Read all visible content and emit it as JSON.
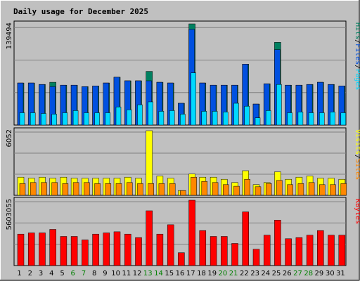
{
  "chart_data": {
    "type": "bar",
    "title": "Daily usage for December 2025",
    "days": [
      "1",
      "2",
      "3",
      "4",
      "5",
      "6",
      "7",
      "8",
      "9",
      "10",
      "11",
      "12",
      "13",
      "14",
      "15",
      "16",
      "17",
      "18",
      "19",
      "20",
      "21",
      "22",
      "23",
      "24",
      "25",
      "26",
      "27",
      "28",
      "29",
      "30",
      "31"
    ],
    "weekend_days": [
      "6",
      "7",
      "13",
      "14",
      "20",
      "21",
      "27",
      "28"
    ],
    "colors": {
      "background": "#c0c0c0",
      "title": "#0000aa",
      "pages": "#00d8ff",
      "files": "#0050e0",
      "hits": "#008060",
      "visits": "#ffff00",
      "sites": "#ff8800",
      "kbytes": "#ff0000",
      "weekend_label": "#008000",
      "weekday_label": "#000000"
    },
    "panels": [
      {
        "id": "hits",
        "max_label": "139494",
        "max": 139494,
        "legend": [
          {
            "text": "Hits",
            "color": "#008060"
          },
          {
            "text": "/",
            "color": "#000000"
          },
          {
            "text": "Files",
            "color": "#0050e0"
          },
          {
            "text": "/",
            "color": "#000000"
          },
          {
            "text": "Pages",
            "color": "#00d8ff"
          }
        ],
        "series": [
          {
            "name": "Hits",
            "color": "#008060",
            "values": [
              58000,
              58000,
              56000,
              59000,
              55000,
              55000,
              53000,
              54000,
              58000,
              66000,
              61000,
              61000,
              74000,
              59000,
              58000,
              30000,
              139494,
              58000,
              55000,
              55000,
              55000,
              84000,
              29000,
              57000,
              114000,
              55000,
              55000,
              56000,
              59000,
              56000,
              54000
            ]
          },
          {
            "name": "Files",
            "color": "#0050e0",
            "values": [
              58000,
              58000,
              56000,
              53000,
              55000,
              55000,
              53000,
              54000,
              58000,
              66000,
              61000,
              61000,
              61000,
              59000,
              58000,
              30000,
              132000,
              58000,
              55000,
              55000,
              55000,
              84000,
              29000,
              57000,
              104000,
              55000,
              55000,
              56000,
              59000,
              56000,
              54000
            ]
          },
          {
            "name": "Pages",
            "color": "#00d8ff",
            "values": [
              17000,
              17000,
              16000,
              15000,
              17000,
              20000,
              17000,
              17000,
              17000,
              25000,
              21000,
              28000,
              32000,
              19000,
              20000,
              15000,
              72000,
              19000,
              19000,
              18000,
              30000,
              26000,
              10000,
              20000,
              56000,
              17000,
              18000,
              17000,
              17000,
              18000,
              17000
            ]
          }
        ]
      },
      {
        "id": "visits",
        "max_label": "6052",
        "max": 6052,
        "legend": [
          {
            "text": "Visits",
            "color": "#ffff00"
          },
          {
            "text": "/",
            "color": "#000000"
          },
          {
            "text": "Sites",
            "color": "#ff8800"
          }
        ],
        "series": [
          {
            "name": "Visits",
            "color": "#ffff00",
            "values": [
              1700,
              1600,
              1700,
              1600,
              1700,
              1600,
              1600,
              1600,
              1600,
              1600,
              1700,
              1600,
              6052,
              1800,
              1600,
              450,
              2000,
              1700,
              1700,
              1500,
              1200,
              2300,
              1000,
              1200,
              2200,
              1500,
              1700,
              1800,
              1600,
              1600,
              1500
            ]
          },
          {
            "name": "Sites",
            "color": "#ff8800",
            "values": [
              1100,
              1200,
              1200,
              1200,
              1100,
              1200,
              1200,
              1100,
              1100,
              1100,
              1200,
              1100,
              1100,
              1100,
              1100,
              450,
              1700,
              1300,
              1200,
              1000,
              850,
              1500,
              800,
              1100,
              1400,
              1000,
              1100,
              1200,
              1000,
              1000,
              1100
            ]
          }
        ]
      },
      {
        "id": "kbytes",
        "max_label": "5603055",
        "max": 5603055,
        "legend": [
          {
            "text": "KBytes",
            "color": "#ff0000"
          }
        ],
        "series": [
          {
            "name": "KBytes",
            "color": "#ff0000",
            "values": [
              2700000,
              2800000,
              2800000,
              3100000,
              2500000,
              2500000,
              2200000,
              2700000,
              2800000,
              2900000,
              2700000,
              2400000,
              4700000,
              2700000,
              3500000,
              1100000,
              5603055,
              3000000,
              2500000,
              2500000,
              1900000,
              4600000,
              1400000,
              2600000,
              3900000,
              2300000,
              2400000,
              2600000,
              3000000,
              2600000,
              2600000
            ]
          }
        ]
      }
    ]
  }
}
